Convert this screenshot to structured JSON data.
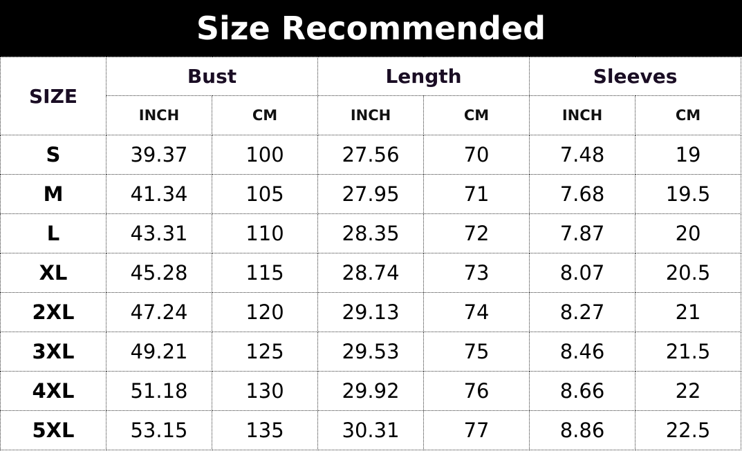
{
  "title": "Size Recommended",
  "header": {
    "size": "SIZE",
    "groups": [
      "Bust",
      "Length",
      "Sleeves"
    ],
    "units": [
      "INCH",
      "CM"
    ]
  },
  "rows": [
    [
      "S",
      "39.37",
      "100",
      "27.56",
      "70",
      "7.48",
      "19"
    ],
    [
      "M",
      "41.34",
      "105",
      "27.95",
      "71",
      "7.68",
      "19.5"
    ],
    [
      "L",
      "43.31",
      "110",
      "28.35",
      "72",
      "7.87",
      "20"
    ],
    [
      "XL",
      "45.28",
      "115",
      "28.74",
      "73",
      "8.07",
      "20.5"
    ],
    [
      "2XL",
      "47.24",
      "120",
      "29.13",
      "74",
      "8.27",
      "21"
    ],
    [
      "3XL",
      "49.21",
      "125",
      "29.53",
      "75",
      "8.46",
      "21.5"
    ],
    [
      "4XL",
      "51.18",
      "130",
      "29.92",
      "76",
      "8.66",
      "22"
    ],
    [
      "5XL",
      "53.15",
      "135",
      "30.31",
      "77",
      "8.86",
      "22.5"
    ]
  ]
}
